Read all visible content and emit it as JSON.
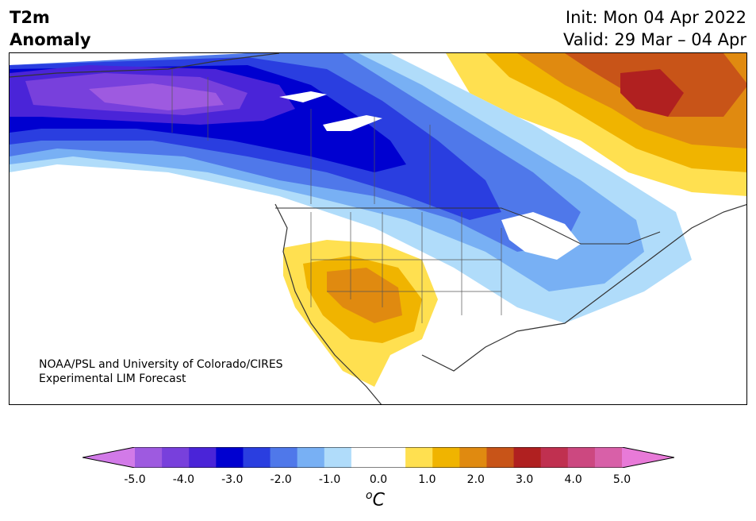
{
  "title": {
    "left_line1": "T2m",
    "left_line2": "Anomaly",
    "right_line1": "Init: Mon 04 Apr 2022",
    "right_line2": "Valid: 29 Mar – 04 Apr"
  },
  "credit": {
    "line1": "NOAA/PSL and University of Colorado/CIRES",
    "line2": "Experimental LIM Forecast"
  },
  "colorbar": {
    "tick_labels": [
      "-5.0",
      "-4.0",
      "-3.0",
      "-2.0",
      "-1.0",
      "0.0",
      "1.0",
      "2.0",
      "3.0",
      "4.0",
      "5.0"
    ],
    "unit_prefix": "o",
    "unit": "C",
    "min": -5.0,
    "max": 5.0,
    "step": 0.5,
    "colors": [
      "#d27ae8",
      "#9e5ae0",
      "#7840dc",
      "#4a24d8",
      "#0000d0",
      "#2a3ee0",
      "#4f78ea",
      "#78b0f4",
      "#b0dcfa",
      "#ffffff",
      "#ffffff",
      "#ffe050",
      "#f0b400",
      "#e08a10",
      "#c85418",
      "#b02020",
      "#c03050",
      "#cc4880",
      "#d860a8",
      "#e87ad8"
    ]
  },
  "map": {
    "region": "North America",
    "field": "2m temperature anomaly"
  }
}
